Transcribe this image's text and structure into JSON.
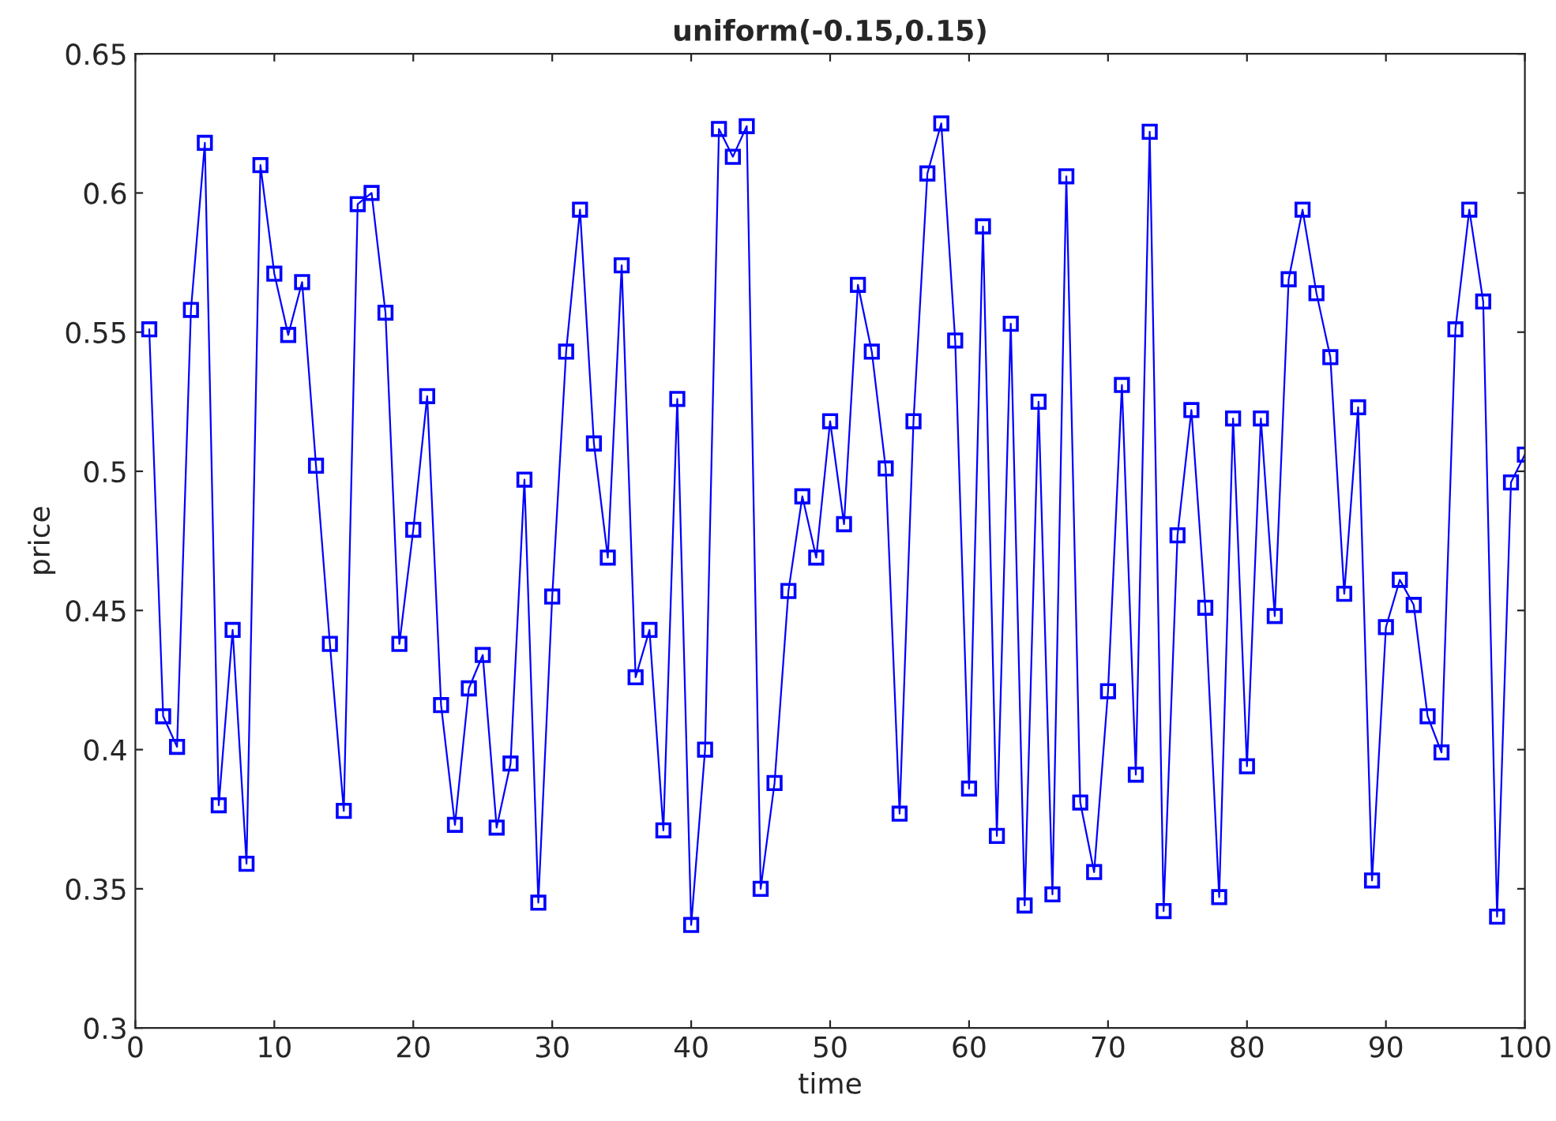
{
  "chart_data": {
    "type": "line",
    "title": "uniform(-0.15,0.15)",
    "xlabel": "time",
    "ylabel": "price",
    "x": [
      1,
      2,
      3,
      4,
      5,
      6,
      7,
      8,
      9,
      10,
      11,
      12,
      13,
      14,
      15,
      16,
      17,
      18,
      19,
      20,
      21,
      22,
      23,
      24,
      25,
      26,
      27,
      28,
      29,
      30,
      31,
      32,
      33,
      34,
      35,
      36,
      37,
      38,
      39,
      40,
      41,
      42,
      43,
      44,
      45,
      46,
      47,
      48,
      49,
      50,
      51,
      52,
      53,
      54,
      55,
      56,
      57,
      58,
      59,
      60,
      61,
      62,
      63,
      64,
      65,
      66,
      67,
      68,
      69,
      70,
      71,
      72,
      73,
      74,
      75,
      76,
      77,
      78,
      79,
      80,
      81,
      82,
      83,
      84,
      85,
      86,
      87,
      88,
      89,
      90,
      91,
      92,
      93,
      94,
      95,
      96,
      97,
      98,
      99,
      100
    ],
    "series": [
      {
        "color": "#0000ff",
        "values": [
          0.551,
          0.412,
          0.401,
          0.558,
          0.618,
          0.38,
          0.443,
          0.359,
          0.61,
          0.571,
          0.549,
          0.568,
          0.502,
          0.438,
          0.378,
          0.596,
          0.6,
          0.557,
          0.438,
          0.479,
          0.527,
          0.416,
          0.373,
          0.422,
          0.434,
          0.372,
          0.395,
          0.497,
          0.345,
          0.455,
          0.543,
          0.594,
          0.51,
          0.469,
          0.574,
          0.426,
          0.443,
          0.371,
          0.526,
          0.337,
          0.4,
          0.623,
          0.613,
          0.624,
          0.35,
          0.388,
          0.457,
          0.491,
          0.469,
          0.518,
          0.481,
          0.567,
          0.543,
          0.501,
          0.377,
          0.518,
          0.607,
          0.625,
          0.547,
          0.386,
          0.588,
          0.369,
          0.553,
          0.344,
          0.525,
          0.348,
          0.606,
          0.381,
          0.356,
          0.421,
          0.531,
          0.391,
          0.622,
          0.342,
          0.477,
          0.522,
          0.451,
          0.347,
          0.519,
          0.394,
          0.519,
          0.448,
          0.569,
          0.594,
          0.564,
          0.541,
          0.456,
          0.523,
          0.353,
          0.444,
          0.461,
          0.452,
          0.412,
          0.399,
          0.551,
          0.594,
          0.561,
          0.34,
          0.496,
          0.506
        ]
      }
    ],
    "xlim": [
      0,
      100
    ],
    "xticks": [
      0,
      10,
      20,
      30,
      40,
      50,
      60,
      70,
      80,
      90,
      100
    ],
    "ylim": [
      0.3,
      0.65
    ],
    "yticks": [
      0.3,
      0.35,
      0.4,
      0.45,
      0.5,
      0.55,
      0.6,
      0.65
    ],
    "grid": false,
    "marker": "square",
    "line_style": "solid"
  }
}
